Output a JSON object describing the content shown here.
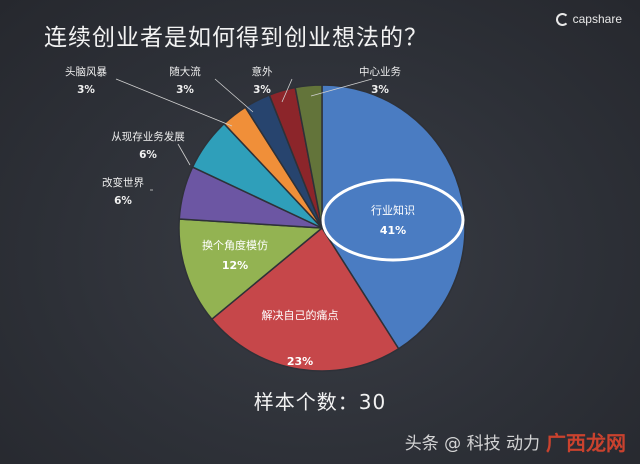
{
  "header": {
    "title": "连续创业者是如何得到创业想法的？",
    "brand": "capshare"
  },
  "chart_data": {
    "type": "pie",
    "title": "连续创业者是如何得到创业想法的？",
    "slices": [
      {
        "label": "行业知识",
        "value": 41,
        "display": "41%",
        "color": "#4a7cc2"
      },
      {
        "label": "解决自己的痛点",
        "value": 23,
        "display": "23%",
        "color": "#c6474a"
      },
      {
        "label": "换个角度模仿",
        "value": 12,
        "display": "12%",
        "color": "#93b352"
      },
      {
        "label": "改变世界",
        "value": 6,
        "display": "6%",
        "color": "#6c56a3"
      },
      {
        "label": "从现存业务发展",
        "value": 6,
        "display": "6%",
        "color": "#2f9fba"
      },
      {
        "label": "头脑风暴",
        "value": 3,
        "display": "3%",
        "color": "#f08f39"
      },
      {
        "label": "随大流",
        "value": 3,
        "display": "3%",
        "color": "#27446e"
      },
      {
        "label": "意外",
        "value": 3,
        "display": "3%",
        "color": "#8c252a"
      },
      {
        "label": "中心业务",
        "value": 3,
        "display": "3%",
        "color": "#63743a"
      }
    ],
    "sample_label": "样本个数：30",
    "legend": "none"
  },
  "watermark": {
    "text": "头条 @ 科技 动力",
    "overlay": "广西龙网"
  }
}
